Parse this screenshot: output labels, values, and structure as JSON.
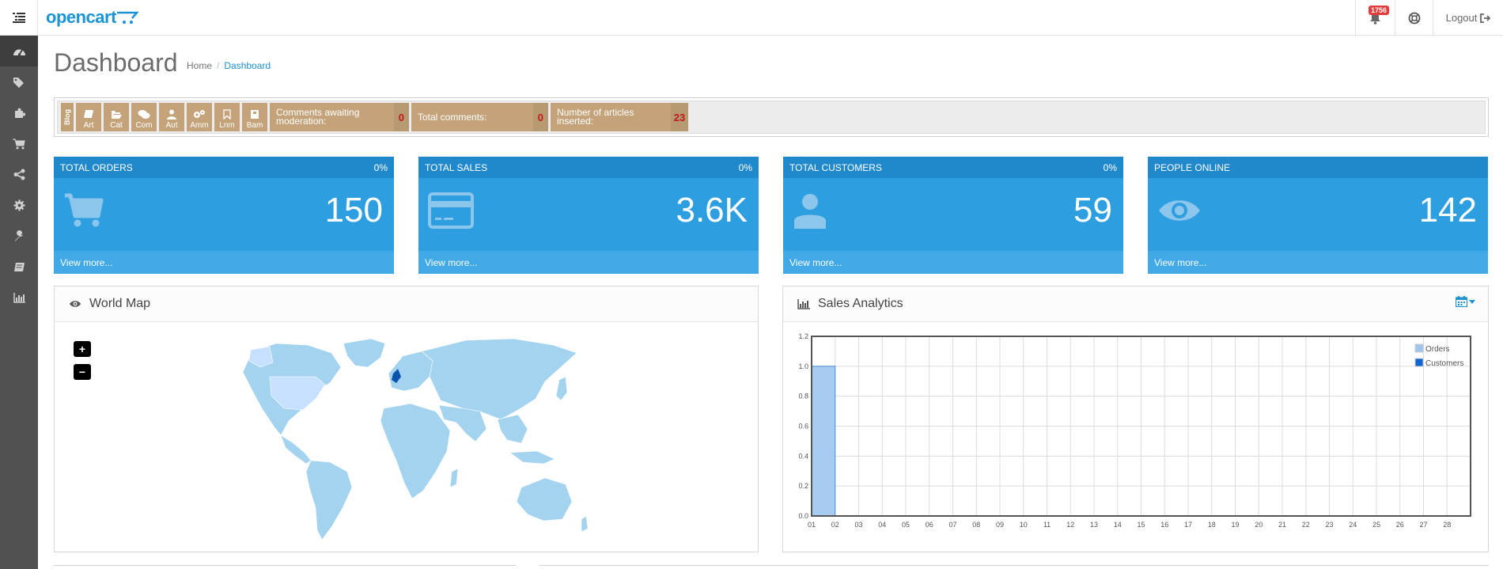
{
  "header": {
    "logo_text": "opencart",
    "notification_count": "1756",
    "logout_label": "Logout"
  },
  "sidebar": {
    "items": [
      {
        "icon": "dashboard-icon",
        "active": true
      },
      {
        "icon": "tags-icon"
      },
      {
        "icon": "puzzle-icon"
      },
      {
        "icon": "cart-icon"
      },
      {
        "icon": "share-icon"
      },
      {
        "icon": "gear-icon"
      },
      {
        "icon": "wrench-icon"
      },
      {
        "icon": "book-icon"
      },
      {
        "icon": "bar-chart-icon"
      }
    ]
  },
  "page": {
    "title": "Dashboard",
    "breadcrumb": [
      "Home",
      "Dashboard"
    ]
  },
  "blogbar": {
    "label": "Blog",
    "buttons": [
      "Art",
      "Cat",
      "Com",
      "Aut",
      "Amm",
      "Lnm",
      "Bam"
    ],
    "stats": [
      {
        "label": "Comments awaiting moderation:",
        "value": "0"
      },
      {
        "label": "Total comments:",
        "value": "0"
      },
      {
        "label": "Number of articles inserted:",
        "value": "23"
      }
    ]
  },
  "tiles": [
    {
      "title": "TOTAL ORDERS",
      "percent": "0%",
      "value": "150",
      "footer": "View more...",
      "icon": "cart-icon"
    },
    {
      "title": "TOTAL SALES",
      "percent": "0%",
      "value": "3.6K",
      "footer": "View more...",
      "icon": "credit-card-icon"
    },
    {
      "title": "TOTAL CUSTOMERS",
      "percent": "0%",
      "value": "59",
      "footer": "View more...",
      "icon": "user-icon"
    },
    {
      "title": "PEOPLE ONLINE",
      "percent": "",
      "value": "142",
      "footer": "View more...",
      "icon": "eye-icon"
    }
  ],
  "map_panel": {
    "title": "World Map",
    "zoom_in": "+",
    "zoom_out": "−"
  },
  "sales_panel": {
    "title": "Sales Analytics"
  },
  "colors": {
    "tile_bg": "#2d9ee0",
    "tile_head": "#2089cc",
    "blog_tan": "#c4a37a",
    "sidebar_bg": "#515151",
    "accent": "#1e91cf"
  },
  "chart_data": {
    "type": "bar",
    "title": "",
    "x": [
      "01",
      "02",
      "03",
      "04",
      "05",
      "06",
      "07",
      "08",
      "09",
      "10",
      "11",
      "12",
      "13",
      "14",
      "15",
      "16",
      "17",
      "18",
      "19",
      "20",
      "21",
      "22",
      "23",
      "24",
      "25",
      "26",
      "27",
      "28"
    ],
    "series": [
      {
        "name": "Orders",
        "color": "#9ec6ef",
        "values": [
          1,
          0,
          0,
          0,
          0,
          0,
          0,
          0,
          0,
          0,
          0,
          0,
          0,
          0,
          0,
          0,
          0,
          0,
          0,
          0,
          0,
          0,
          0,
          0,
          0,
          0,
          0,
          0
        ]
      },
      {
        "name": "Customers",
        "color": "#1065d3",
        "values": [
          0,
          0,
          0,
          0,
          0,
          0,
          0,
          0,
          0,
          0,
          0,
          0,
          0,
          0,
          0,
          0,
          0,
          0,
          0,
          0,
          0,
          0,
          0,
          0,
          0,
          0,
          0,
          0
        ]
      }
    ],
    "yticks": [
      "0.0",
      "0.2",
      "0.4",
      "0.6",
      "0.8",
      "1.0",
      "1.2"
    ],
    "ylim": [
      0,
      1.2
    ],
    "grid": true,
    "legend": "top-right"
  }
}
